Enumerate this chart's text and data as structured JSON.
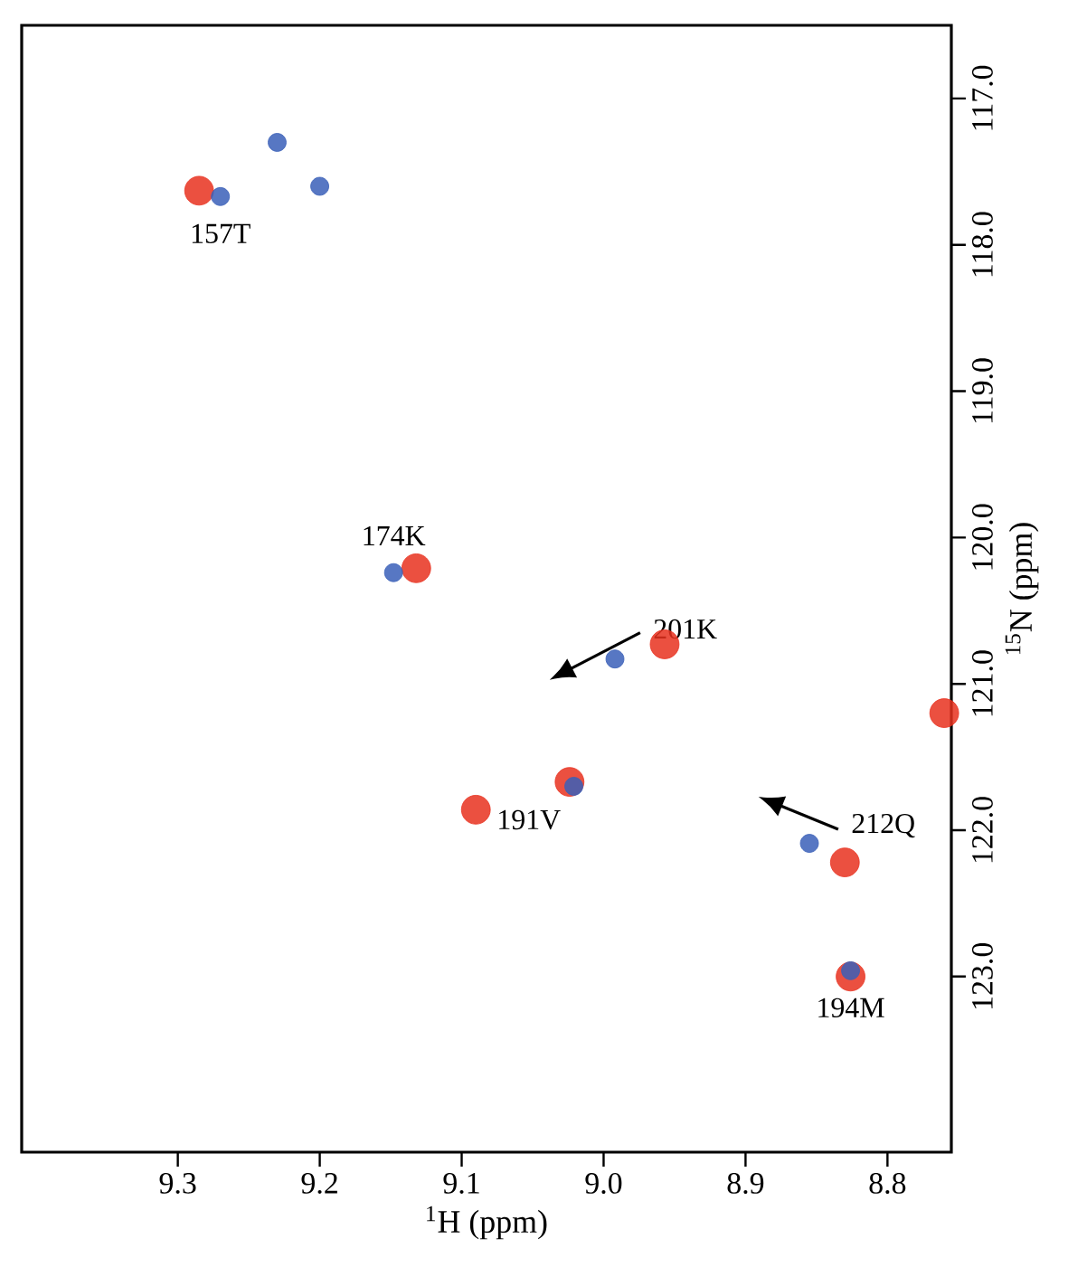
{
  "chart_data": {
    "type": "scatter",
    "xlabel": "$^{1}$H (ppm)",
    "ylabel": "$^{15}$N (ppm)",
    "xlim": [
      9.41,
      8.755
    ],
    "ylim": [
      124.2,
      116.5
    ],
    "xticks": [
      9.3,
      9.2,
      9.1,
      {
        "value": 9,
        "label": "9.0"
      },
      8.9,
      8.8
    ],
    "yticks": [
      {
        "value": 117,
        "label": "117.0"
      },
      {
        "value": 118,
        "label": "118.0"
      },
      {
        "value": 119,
        "label": "119.0"
      },
      {
        "value": 120,
        "label": "120.0"
      },
      {
        "value": 121,
        "label": "121.0"
      },
      {
        "value": 122,
        "label": "122.0"
      },
      {
        "value": 123,
        "label": "123.0"
      }
    ],
    "grid": false,
    "series": [
      {
        "color": "#e8311f",
        "x": [
          9.285,
          9.132,
          8.957,
          9.024,
          9.09,
          8.83,
          8.826,
          8.76
        ],
        "values": [
          117.63,
          120.21,
          120.73,
          121.67,
          121.86,
          122.22,
          123.0,
          121.2
        ]
      },
      {
        "color": "#3a5fb8",
        "x": [
          9.27,
          9.23,
          9.2,
          9.148,
          8.992,
          9.021,
          8.855,
          8.826
        ],
        "values": [
          117.67,
          117.3,
          117.6,
          120.24,
          120.83,
          121.7,
          122.09,
          122.96
        ]
      }
    ],
    "annotations": [
      {
        "text": "157T",
        "x": 9.27,
        "y": 117.67
      },
      {
        "text": "174K",
        "x": 9.148,
        "y": 120.24
      },
      {
        "text": "201K",
        "x": 8.992,
        "y": 120.83
      },
      {
        "text": "191V",
        "x": 9.021,
        "y": 121.7
      },
      {
        "text": "212Q",
        "x": 8.855,
        "y": 122.09
      },
      {
        "text": "194M",
        "x": 8.826,
        "y": 122.96
      }
    ]
  }
}
